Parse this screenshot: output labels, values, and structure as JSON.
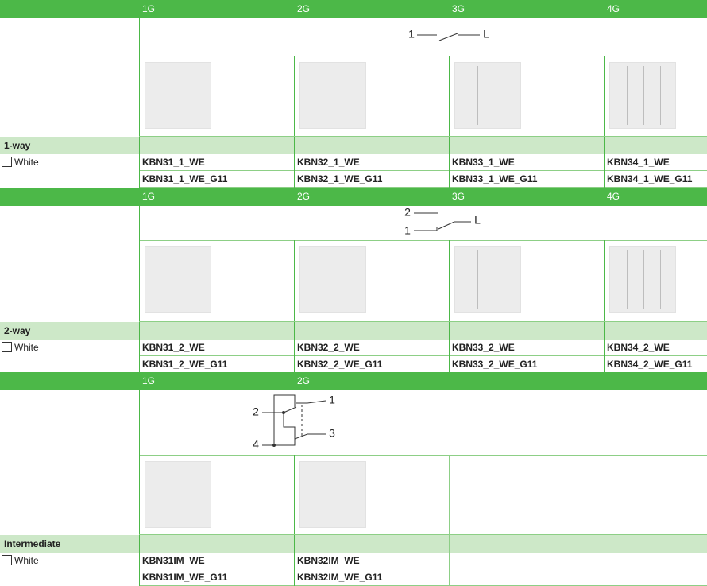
{
  "sections": [
    {
      "columns": [
        "1G",
        "2G",
        "3G",
        "4G"
      ],
      "diagram": [
        "1",
        "L"
      ],
      "name": "1-way",
      "finish": "White",
      "codes": [
        [
          "KBN31_1_WE",
          "KBN32_1_WE",
          "KBN33_1_WE",
          "KBN34_1_WE"
        ],
        [
          "KBN31_1_WE_G11",
          "KBN32_1_WE_G11",
          "KBN33_1_WE_G11",
          "KBN34_1_WE_G11"
        ]
      ]
    },
    {
      "columns": [
        "1G",
        "2G",
        "3G",
        "4G"
      ],
      "diagram": [
        "2",
        "1",
        "L"
      ],
      "name": "2-way",
      "finish": "White",
      "codes": [
        [
          "KBN31_2_WE",
          "KBN32_2_WE",
          "KBN33_2_WE",
          "KBN34_2_WE"
        ],
        [
          "KBN31_2_WE_G11",
          "KBN32_2_WE_G11",
          "KBN33_2_WE_G11",
          "KBN34_2_WE_G11"
        ]
      ]
    },
    {
      "columns": [
        "1G",
        "2G"
      ],
      "diagram": [
        "2",
        "1",
        "4",
        "3"
      ],
      "name": "Intermediate",
      "finish": "White",
      "codes": [
        [
          "KBN31IM_WE",
          "KBN32IM_WE"
        ],
        [
          "KBN31IM_WE_G11",
          "KBN32IM_WE_G11"
        ]
      ]
    }
  ]
}
